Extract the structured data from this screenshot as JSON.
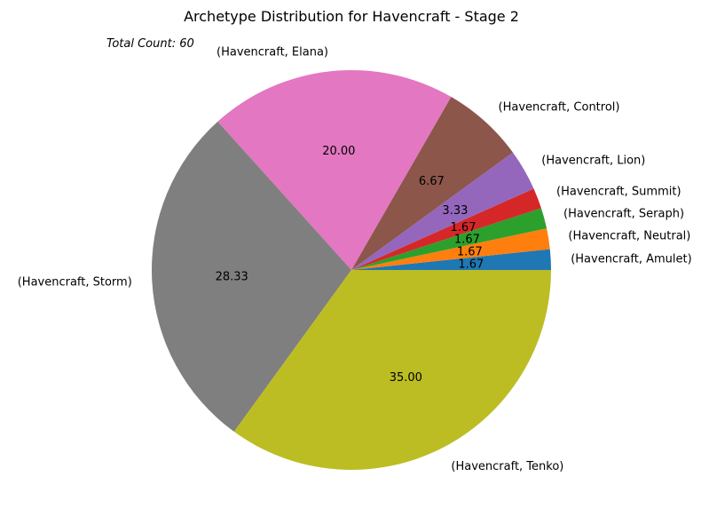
{
  "chart_data": {
    "type": "pie",
    "title": "Archetype Distribution for Havencraft - Stage 2",
    "annotation": "Total Count: 60",
    "slices": [
      {
        "label": "(Havencraft, Amulet)",
        "value": 1.67,
        "pct_label": "1.67",
        "color": "#1f77b4"
      },
      {
        "label": "(Havencraft, Neutral)",
        "value": 1.67,
        "pct_label": "1.67",
        "color": "#ff7f0e"
      },
      {
        "label": "(Havencraft, Seraph)",
        "value": 1.67,
        "pct_label": "1.67",
        "color": "#2ca02c"
      },
      {
        "label": "(Havencraft, Summit)",
        "value": 1.67,
        "pct_label": "1.67",
        "color": "#d62728"
      },
      {
        "label": "(Havencraft, Lion)",
        "value": 3.33,
        "pct_label": "3.33",
        "color": "#9467bd"
      },
      {
        "label": "(Havencraft, Control)",
        "value": 6.67,
        "pct_label": "6.67",
        "color": "#8c564b"
      },
      {
        "label": "(Havencraft, Elana)",
        "value": 20.0,
        "pct_label": "20.00",
        "color": "#e377c2"
      },
      {
        "label": "(Havencraft, Storm)",
        "value": 28.33,
        "pct_label": "28.33",
        "color": "#7f7f7f"
      },
      {
        "label": "(Havencraft, Tenko)",
        "value": 35.0,
        "pct_label": "35.00",
        "color": "#bcbd22"
      }
    ]
  }
}
